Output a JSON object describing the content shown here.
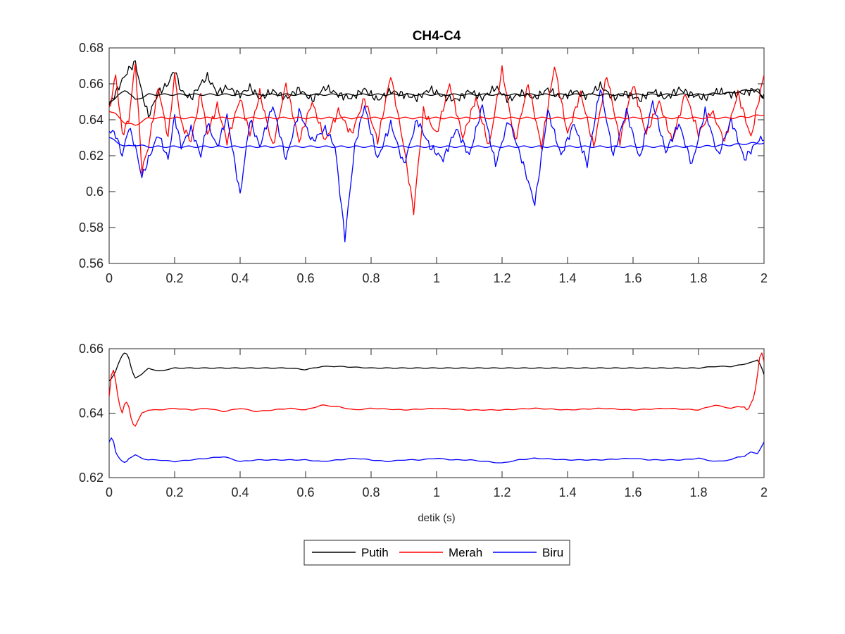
{
  "chart_data": [
    {
      "type": "line",
      "title": "CH4-C4",
      "xlabel": "",
      "ylabel": "",
      "xlim": [
        0,
        2
      ],
      "ylim": [
        0.56,
        0.68
      ],
      "xticks": [
        0,
        0.2,
        0.4,
        0.6,
        0.8,
        1,
        1.2,
        1.4,
        1.6,
        1.8,
        2
      ],
      "xtick_labels": [
        "0",
        "0.2",
        "0.4",
        "0.6",
        "0.8",
        "1",
        "1.2",
        "1.4",
        "1.6",
        "1.8",
        "2"
      ],
      "yticks": [
        0.56,
        0.58,
        0.6,
        0.62,
        0.64,
        0.66,
        0.68
      ],
      "ytick_labels": [
        "0.56",
        "0.58",
        "0.6",
        "0.62",
        "0.64",
        "0.66",
        "0.68"
      ],
      "grid": false,
      "series": [
        {
          "name": "Putih",
          "color": "#000000",
          "shape": "noisy",
          "x": [
            0,
            0.02,
            0.04,
            0.06,
            0.08,
            0.1,
            0.12,
            0.15,
            0.18,
            0.2,
            0.22,
            0.25,
            0.28,
            0.3,
            0.33,
            0.36,
            0.4,
            0.43,
            0.46,
            0.5,
            0.54,
            0.58,
            0.62,
            0.66,
            0.7,
            0.74,
            0.78,
            0.82,
            0.86,
            0.9,
            0.94,
            0.98,
            1.02,
            1.06,
            1.1,
            1.14,
            1.18,
            1.22,
            1.26,
            1.3,
            1.34,
            1.38,
            1.42,
            1.46,
            1.5,
            1.54,
            1.58,
            1.62,
            1.66,
            1.7,
            1.74,
            1.78,
            1.82,
            1.86,
            1.9,
            1.94,
            1.98,
            2
          ],
          "y": [
            0.648,
            0.655,
            0.662,
            0.668,
            0.672,
            0.655,
            0.642,
            0.655,
            0.66,
            0.668,
            0.656,
            0.652,
            0.66,
            0.664,
            0.655,
            0.658,
            0.654,
            0.658,
            0.652,
            0.656,
            0.652,
            0.657,
            0.651,
            0.658,
            0.654,
            0.652,
            0.657,
            0.651,
            0.656,
            0.654,
            0.652,
            0.657,
            0.653,
            0.651,
            0.656,
            0.652,
            0.658,
            0.651,
            0.655,
            0.652,
            0.657,
            0.652,
            0.656,
            0.653,
            0.659,
            0.652,
            0.655,
            0.651,
            0.656,
            0.652,
            0.657,
            0.654,
            0.652,
            0.656,
            0.654,
            0.655,
            0.657,
            0.652
          ]
        },
        {
          "name": "Merah",
          "color": "#ff0000",
          "shape": "noisy",
          "x": [
            0,
            0.02,
            0.04,
            0.06,
            0.08,
            0.1,
            0.12,
            0.15,
            0.18,
            0.2,
            0.22,
            0.25,
            0.28,
            0.3,
            0.33,
            0.36,
            0.4,
            0.43,
            0.46,
            0.5,
            0.54,
            0.58,
            0.62,
            0.66,
            0.7,
            0.74,
            0.78,
            0.82,
            0.86,
            0.9,
            0.93,
            0.96,
            1.0,
            1.04,
            1.08,
            1.12,
            1.16,
            1.2,
            1.24,
            1.28,
            1.32,
            1.36,
            1.4,
            1.44,
            1.48,
            1.52,
            1.56,
            1.6,
            1.64,
            1.68,
            1.72,
            1.76,
            1.8,
            1.84,
            1.88,
            1.92,
            1.96,
            2
          ],
          "y": [
            0.645,
            0.665,
            0.632,
            0.64,
            0.672,
            0.612,
            0.625,
            0.658,
            0.63,
            0.665,
            0.638,
            0.628,
            0.655,
            0.632,
            0.648,
            0.628,
            0.652,
            0.632,
            0.655,
            0.625,
            0.66,
            0.628,
            0.65,
            0.628,
            0.645,
            0.632,
            0.652,
            0.628,
            0.665,
            0.625,
            0.589,
            0.645,
            0.632,
            0.66,
            0.63,
            0.652,
            0.625,
            0.668,
            0.628,
            0.66,
            0.625,
            0.67,
            0.632,
            0.655,
            0.625,
            0.665,
            0.628,
            0.66,
            0.632,
            0.65,
            0.628,
            0.655,
            0.632,
            0.645,
            0.628,
            0.655,
            0.63,
            0.665
          ]
        },
        {
          "name": "Biru",
          "color": "#0000ff",
          "shape": "noisy",
          "x": [
            0,
            0.02,
            0.04,
            0.06,
            0.08,
            0.1,
            0.12,
            0.15,
            0.18,
            0.2,
            0.22,
            0.25,
            0.28,
            0.3,
            0.33,
            0.36,
            0.4,
            0.43,
            0.46,
            0.5,
            0.54,
            0.58,
            0.62,
            0.66,
            0.69,
            0.72,
            0.75,
            0.78,
            0.82,
            0.86,
            0.9,
            0.94,
            0.98,
            1.02,
            1.06,
            1.1,
            1.14,
            1.18,
            1.22,
            1.26,
            1.3,
            1.34,
            1.38,
            1.42,
            1.46,
            1.5,
            1.54,
            1.58,
            1.62,
            1.66,
            1.7,
            1.74,
            1.78,
            1.82,
            1.86,
            1.9,
            1.94,
            1.98,
            2
          ],
          "y": [
            0.634,
            0.632,
            0.62,
            0.636,
            0.625,
            0.608,
            0.618,
            0.632,
            0.618,
            0.642,
            0.625,
            0.635,
            0.62,
            0.638,
            0.625,
            0.642,
            0.598,
            0.64,
            0.625,
            0.648,
            0.618,
            0.645,
            0.628,
            0.635,
            0.625,
            0.574,
            0.625,
            0.648,
            0.618,
            0.638,
            0.615,
            0.64,
            0.625,
            0.618,
            0.635,
            0.62,
            0.648,
            0.615,
            0.64,
            0.618,
            0.593,
            0.645,
            0.62,
            0.638,
            0.615,
            0.658,
            0.62,
            0.645,
            0.618,
            0.65,
            0.622,
            0.638,
            0.615,
            0.645,
            0.62,
            0.64,
            0.618,
            0.628,
            0.63
          ]
        },
        {
          "name": "Putih",
          "color": "#000000",
          "shape": "smooth",
          "x": [
            0,
            0.02,
            0.05,
            0.08,
            0.12,
            0.2,
            0.4,
            0.6,
            0.8,
            1,
            1.2,
            1.4,
            1.6,
            1.8,
            1.9,
            1.97,
            2
          ],
          "y": [
            0.65,
            0.652,
            0.657,
            0.651,
            0.654,
            0.654,
            0.654,
            0.654,
            0.654,
            0.654,
            0.654,
            0.654,
            0.654,
            0.654,
            0.655,
            0.657,
            0.652
          ]
        },
        {
          "name": "Merah",
          "color": "#ff0000",
          "shape": "smooth",
          "x": [
            0,
            0.02,
            0.05,
            0.08,
            0.12,
            0.2,
            0.4,
            0.6,
            0.8,
            1,
            1.2,
            1.4,
            1.6,
            1.8,
            1.9,
            1.97,
            2
          ],
          "y": [
            0.645,
            0.643,
            0.638,
            0.637,
            0.641,
            0.641,
            0.641,
            0.641,
            0.641,
            0.641,
            0.641,
            0.641,
            0.641,
            0.641,
            0.641,
            0.642,
            0.643
          ]
        },
        {
          "name": "Biru",
          "color": "#0000ff",
          "shape": "smooth",
          "x": [
            0,
            0.02,
            0.05,
            0.08,
            0.12,
            0.2,
            0.4,
            0.6,
            0.8,
            1,
            1.2,
            1.4,
            1.6,
            1.8,
            1.9,
            1.97,
            2
          ],
          "y": [
            0.63,
            0.628,
            0.625,
            0.626,
            0.625,
            0.625,
            0.625,
            0.625,
            0.625,
            0.625,
            0.625,
            0.625,
            0.625,
            0.625,
            0.626,
            0.627,
            0.627
          ]
        }
      ]
    },
    {
      "type": "line",
      "title": "",
      "xlabel": "detik (s)",
      "ylabel": "",
      "xlim": [
        0,
        2
      ],
      "ylim": [
        0.62,
        0.66
      ],
      "xticks": [
        0,
        0.2,
        0.4,
        0.6,
        0.8,
        1,
        1.2,
        1.4,
        1.6,
        1.8,
        2
      ],
      "xtick_labels": [
        "0",
        "0.2",
        "0.4",
        "0.6",
        "0.8",
        "1",
        "1.2",
        "1.4",
        "1.6",
        "1.8",
        "2"
      ],
      "yticks": [
        0.62,
        0.64,
        0.66
      ],
      "ytick_labels": [
        "0.62",
        "0.64",
        "0.66"
      ],
      "grid": false,
      "series": [
        {
          "name": "Putih",
          "color": "#000000",
          "x": [
            0,
            0.01,
            0.02,
            0.03,
            0.04,
            0.05,
            0.06,
            0.07,
            0.08,
            0.1,
            0.12,
            0.15,
            0.2,
            0.3,
            0.4,
            0.5,
            0.55,
            0.6,
            0.65,
            0.7,
            0.8,
            0.9,
            1,
            1.1,
            1.2,
            1.3,
            1.4,
            1.5,
            1.6,
            1.7,
            1.8,
            1.85,
            1.9,
            1.93,
            1.95,
            1.97,
            1.98,
            1.99,
            2
          ],
          "y": [
            0.65,
            0.651,
            0.653,
            0.656,
            0.658,
            0.659,
            0.657,
            0.653,
            0.651,
            0.652,
            0.654,
            0.653,
            0.654,
            0.654,
            0.654,
            0.654,
            0.654,
            0.6535,
            0.6545,
            0.6545,
            0.654,
            0.654,
            0.654,
            0.654,
            0.654,
            0.654,
            0.654,
            0.654,
            0.654,
            0.654,
            0.654,
            0.6545,
            0.6545,
            0.655,
            0.6555,
            0.656,
            0.6565,
            0.655,
            0.652
          ]
        },
        {
          "name": "Merah",
          "color": "#ff0000",
          "x": [
            0,
            0.01,
            0.02,
            0.03,
            0.04,
            0.05,
            0.06,
            0.07,
            0.08,
            0.09,
            0.1,
            0.12,
            0.15,
            0.2,
            0.25,
            0.3,
            0.35,
            0.4,
            0.45,
            0.5,
            0.55,
            0.6,
            0.65,
            0.7,
            0.75,
            0.8,
            0.9,
            1,
            1.1,
            1.2,
            1.3,
            1.4,
            1.5,
            1.6,
            1.7,
            1.8,
            1.85,
            1.9,
            1.92,
            1.94,
            1.95,
            1.96,
            1.97,
            1.98,
            1.99,
            2
          ],
          "y": [
            0.645,
            0.655,
            0.65,
            0.643,
            0.64,
            0.644,
            0.642,
            0.637,
            0.636,
            0.638,
            0.64,
            0.641,
            0.641,
            0.6415,
            0.641,
            0.6415,
            0.6405,
            0.6415,
            0.6405,
            0.641,
            0.6415,
            0.641,
            0.6425,
            0.642,
            0.641,
            0.6415,
            0.641,
            0.6415,
            0.641,
            0.641,
            0.6415,
            0.641,
            0.6415,
            0.641,
            0.6415,
            0.641,
            0.6425,
            0.6415,
            0.642,
            0.642,
            0.6405,
            0.643,
            0.645,
            0.652,
            0.66,
            0.656
          ]
        },
        {
          "name": "Biru",
          "color": "#0000ff",
          "x": [
            0,
            0.01,
            0.02,
            0.03,
            0.04,
            0.05,
            0.06,
            0.08,
            0.1,
            0.12,
            0.15,
            0.2,
            0.25,
            0.3,
            0.35,
            0.4,
            0.45,
            0.5,
            0.6,
            0.65,
            0.7,
            0.75,
            0.8,
            0.85,
            0.9,
            0.95,
            1,
            1.05,
            1.1,
            1.15,
            1.2,
            1.25,
            1.3,
            1.4,
            1.5,
            1.6,
            1.65,
            1.7,
            1.75,
            1.8,
            1.85,
            1.9,
            1.92,
            1.94,
            1.96,
            1.98,
            1.99,
            2
          ],
          "y": [
            0.631,
            0.633,
            0.628,
            0.626,
            0.625,
            0.6245,
            0.626,
            0.627,
            0.626,
            0.6255,
            0.6255,
            0.625,
            0.6255,
            0.626,
            0.6265,
            0.625,
            0.6255,
            0.6255,
            0.6255,
            0.625,
            0.6255,
            0.626,
            0.6255,
            0.625,
            0.6255,
            0.6255,
            0.626,
            0.6255,
            0.6255,
            0.625,
            0.6245,
            0.6255,
            0.626,
            0.6255,
            0.6255,
            0.626,
            0.6255,
            0.6255,
            0.6255,
            0.626,
            0.625,
            0.6255,
            0.6265,
            0.6265,
            0.628,
            0.6275,
            0.629,
            0.631
          ]
        }
      ]
    }
  ],
  "legend": {
    "location": "bottom-center",
    "entries": [
      {
        "label": "Putih",
        "color": "#000000"
      },
      {
        "label": "Merah",
        "color": "#ff0000"
      },
      {
        "label": "Biru",
        "color": "#0000ff"
      }
    ]
  }
}
